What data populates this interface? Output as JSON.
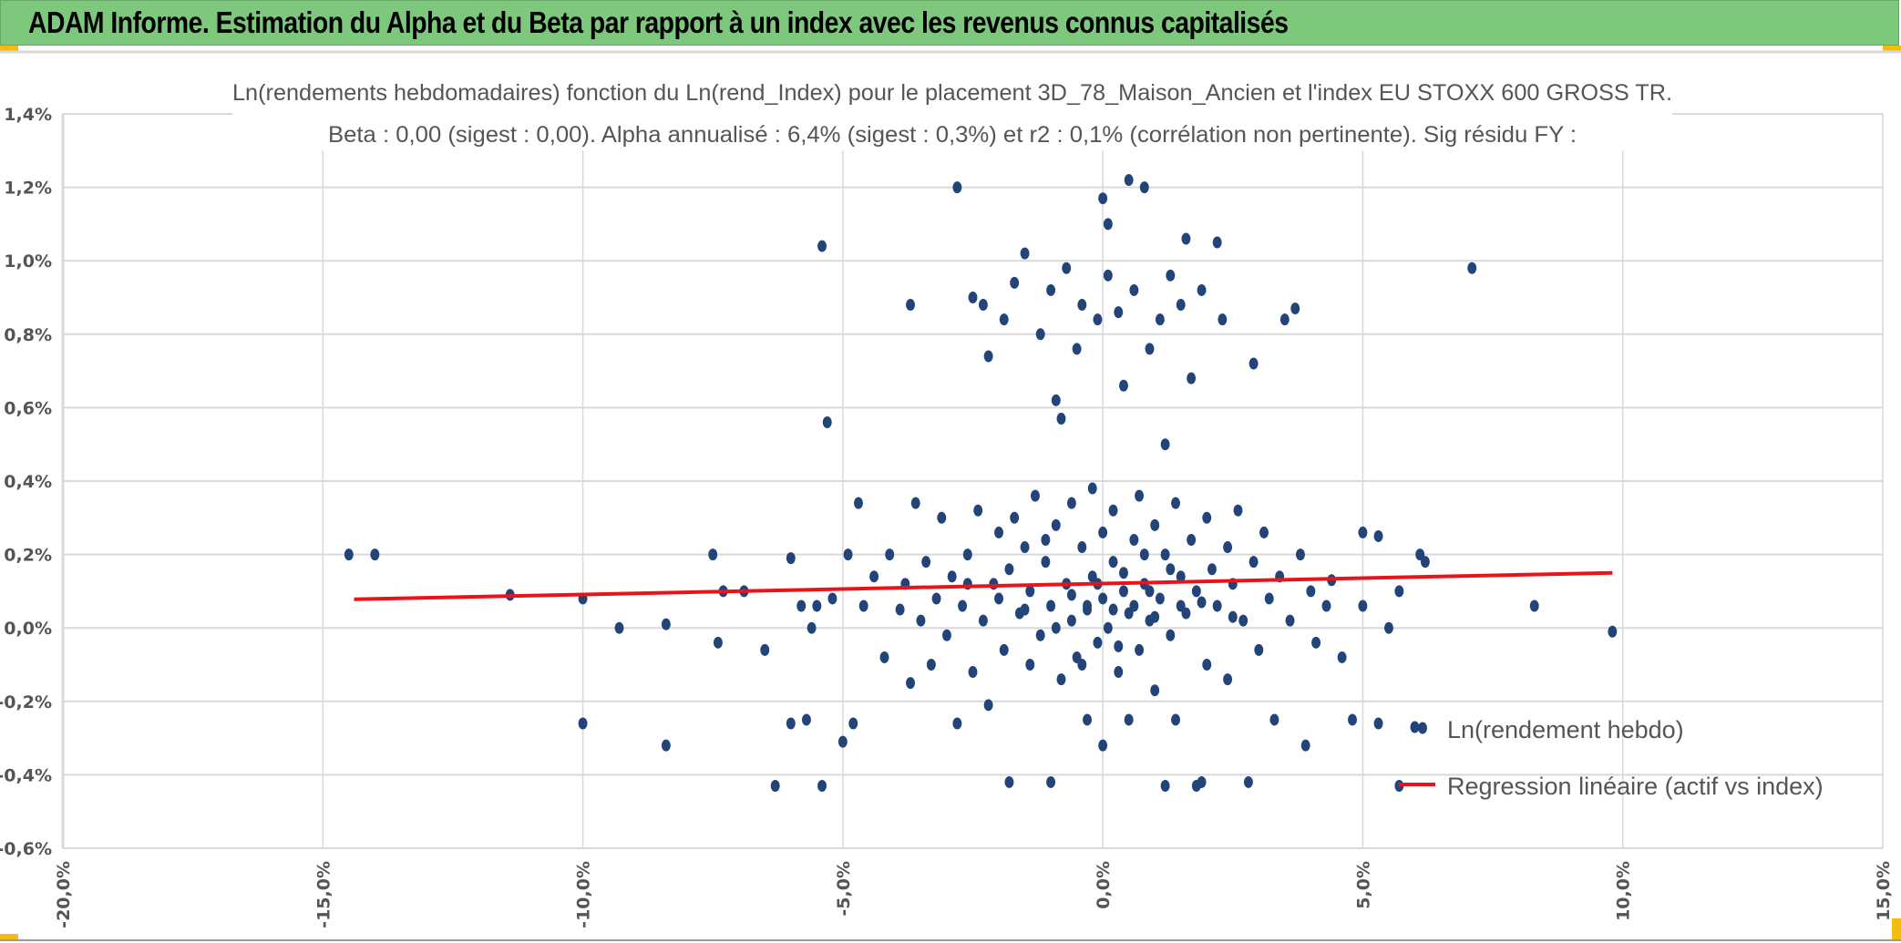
{
  "header": {
    "title": "ADAM Informe. Estimation du Alpha et du Beta par rapport à un index avec les revenus connus capitalisés"
  },
  "colors": {
    "header_bg": "#7dc87d",
    "points": "#234479",
    "regression": "#e8141b",
    "grid": "#d9d9d9",
    "accent": "#f4bc12"
  },
  "chart_data": {
    "type": "scatter",
    "title": "Ln(rendements hebdomadaires) fonction du Ln(rend_Index) pour le placement 3D_78_Maison_Ancien et l'index EU STOXX 600 GROSS TR.",
    "subtitle": "Beta : 0,00 (sigest : 0,00). Alpha annualisé : 6,4% (sigest : 0,3%) et r2 : 0,1% (corrélation non pertinente). Sig résidu FY :",
    "xlim": [
      -20,
      15
    ],
    "ylim": [
      -0.6,
      1.4
    ],
    "x_unit": "%",
    "y_unit": "%",
    "x_ticks": [
      "-20,0%",
      "-15,0%",
      "-10,0%",
      "-5,0%",
      "0,0%",
      "5,0%",
      "10,0%",
      "15,0%"
    ],
    "x_tick_values": [
      -20,
      -15,
      -10,
      -5,
      0,
      5,
      10,
      15
    ],
    "y_ticks": [
      "1,4%",
      "1,2%",
      "1,0%",
      "0,8%",
      "0,6%",
      "0,4%",
      "0,2%",
      "0,0%",
      "-0,2%",
      "-0,4%",
      "-0,6%"
    ],
    "y_tick_values": [
      1.4,
      1.2,
      1.0,
      0.8,
      0.6,
      0.4,
      0.2,
      0.0,
      -0.2,
      -0.4,
      -0.6
    ],
    "grid": "horizontal and vertical",
    "legend_placement": "bottom-right",
    "series": [
      {
        "name": "Ln(rendement hebdo)",
        "kind": "scatter",
        "points": [
          [
            -14.5,
            0.2
          ],
          [
            -14.0,
            0.2
          ],
          [
            -11.4,
            0.09
          ],
          [
            -10.0,
            0.08
          ],
          [
            -10.0,
            -0.26
          ],
          [
            -9.3,
            0.0
          ],
          [
            -8.4,
            0.01
          ],
          [
            -8.4,
            -0.32
          ],
          [
            -7.5,
            0.2
          ],
          [
            -7.4,
            -0.04
          ],
          [
            -7.3,
            0.1
          ],
          [
            -6.9,
            0.1
          ],
          [
            -6.5,
            -0.06
          ],
          [
            -6.3,
            -0.43
          ],
          [
            -6.0,
            0.19
          ],
          [
            -6.0,
            -0.26
          ],
          [
            -5.8,
            0.06
          ],
          [
            -5.7,
            -0.25
          ],
          [
            -5.6,
            0.0
          ],
          [
            -5.5,
            0.06
          ],
          [
            -5.4,
            1.04
          ],
          [
            -5.3,
            0.56
          ],
          [
            -5.4,
            -0.43
          ],
          [
            -5.2,
            0.08
          ],
          [
            -5.0,
            -0.31
          ],
          [
            -4.9,
            0.2
          ],
          [
            -4.8,
            -0.26
          ],
          [
            -4.7,
            0.34
          ],
          [
            -4.6,
            0.06
          ],
          [
            -4.4,
            0.14
          ],
          [
            -4.2,
            -0.08
          ],
          [
            -4.1,
            0.2
          ],
          [
            -3.9,
            0.05
          ],
          [
            -3.8,
            0.12
          ],
          [
            -3.7,
            0.88
          ],
          [
            -3.7,
            -0.15
          ],
          [
            -3.6,
            0.34
          ],
          [
            -3.5,
            0.02
          ],
          [
            -3.4,
            0.18
          ],
          [
            -3.3,
            -0.1
          ],
          [
            -3.2,
            0.08
          ],
          [
            -3.1,
            0.3
          ],
          [
            -3.0,
            -0.02
          ],
          [
            -2.9,
            0.14
          ],
          [
            -2.8,
            1.2
          ],
          [
            -2.8,
            -0.26
          ],
          [
            -2.7,
            0.06
          ],
          [
            -2.6,
            0.2
          ],
          [
            -2.5,
            0.9
          ],
          [
            -2.5,
            -0.12
          ],
          [
            -2.4,
            0.32
          ],
          [
            -2.3,
            0.88
          ],
          [
            -2.3,
            0.02
          ],
          [
            -2.2,
            0.74
          ],
          [
            -2.2,
            -0.21
          ],
          [
            -2.1,
            0.12
          ],
          [
            -2.0,
            0.26
          ],
          [
            -1.9,
            0.84
          ],
          [
            -1.9,
            -0.06
          ],
          [
            -1.8,
            -0.42
          ],
          [
            -1.8,
            0.16
          ],
          [
            -1.7,
            0.3
          ],
          [
            -1.7,
            0.94
          ],
          [
            -1.6,
            0.04
          ],
          [
            -1.5,
            1.02
          ],
          [
            -1.5,
            0.22
          ],
          [
            -1.4,
            -0.1
          ],
          [
            -1.4,
            0.1
          ],
          [
            -1.3,
            0.36
          ],
          [
            -1.2,
            0.8
          ],
          [
            -1.2,
            -0.02
          ],
          [
            -1.1,
            0.18
          ],
          [
            -1.0,
            -0.42
          ],
          [
            -1.0,
            0.92
          ],
          [
            -1.0,
            0.06
          ],
          [
            -0.9,
            0.62
          ],
          [
            -0.9,
            0.28
          ],
          [
            -0.8,
            -0.14
          ],
          [
            -0.8,
            0.57
          ],
          [
            -0.7,
            0.12
          ],
          [
            -0.7,
            0.98
          ],
          [
            -0.6,
            0.34
          ],
          [
            -0.6,
            0.02
          ],
          [
            -0.5,
            0.76
          ],
          [
            -0.5,
            -0.08
          ],
          [
            -0.4,
            0.22
          ],
          [
            -0.4,
            0.88
          ],
          [
            -0.3,
            0.06
          ],
          [
            -0.3,
            -0.25
          ],
          [
            -0.2,
            0.38
          ],
          [
            -0.2,
            0.14
          ],
          [
            -0.1,
            0.84
          ],
          [
            -0.1,
            -0.04
          ],
          [
            0.0,
            1.17
          ],
          [
            0.0,
            0.08
          ],
          [
            0.0,
            -0.32
          ],
          [
            0.0,
            0.26
          ],
          [
            0.1,
            1.1
          ],
          [
            0.1,
            0.96
          ],
          [
            0.1,
            0.0
          ],
          [
            0.2,
            0.18
          ],
          [
            0.2,
            0.32
          ],
          [
            0.3,
            -0.12
          ],
          [
            0.3,
            0.86
          ],
          [
            0.4,
            0.1
          ],
          [
            0.4,
            0.66
          ],
          [
            0.5,
            1.22
          ],
          [
            0.5,
            0.04
          ],
          [
            0.5,
            -0.25
          ],
          [
            0.6,
            0.24
          ],
          [
            0.6,
            0.92
          ],
          [
            0.7,
            0.36
          ],
          [
            0.7,
            -0.06
          ],
          [
            0.8,
            0.12
          ],
          [
            0.8,
            1.2
          ],
          [
            0.9,
            0.76
          ],
          [
            0.9,
            0.02
          ],
          [
            1.0,
            0.28
          ],
          [
            1.0,
            -0.17
          ],
          [
            1.1,
            0.84
          ],
          [
            1.1,
            0.08
          ],
          [
            1.2,
            0.5
          ],
          [
            1.2,
            -0.43
          ],
          [
            1.2,
            0.2
          ],
          [
            1.3,
            0.96
          ],
          [
            1.3,
            -0.02
          ],
          [
            1.4,
            0.34
          ],
          [
            1.4,
            -0.25
          ],
          [
            1.5,
            0.14
          ],
          [
            1.5,
            0.88
          ],
          [
            1.6,
            1.06
          ],
          [
            1.6,
            0.04
          ],
          [
            1.7,
            0.68
          ],
          [
            1.7,
            0.24
          ],
          [
            1.8,
            -0.43
          ],
          [
            1.8,
            0.1
          ],
          [
            1.9,
            -0.42
          ],
          [
            1.9,
            0.92
          ],
          [
            2.0,
            0.3
          ],
          [
            2.0,
            -0.1
          ],
          [
            2.1,
            0.16
          ],
          [
            2.2,
            1.05
          ],
          [
            2.2,
            0.06
          ],
          [
            2.3,
            0.84
          ],
          [
            2.4,
            0.22
          ],
          [
            2.4,
            -0.14
          ],
          [
            2.5,
            0.12
          ],
          [
            2.6,
            0.32
          ],
          [
            2.7,
            0.02
          ],
          [
            2.8,
            -0.42
          ],
          [
            2.9,
            0.72
          ],
          [
            2.9,
            0.18
          ],
          [
            3.0,
            -0.06
          ],
          [
            3.1,
            0.26
          ],
          [
            3.2,
            0.08
          ],
          [
            3.3,
            -0.25
          ],
          [
            3.4,
            0.14
          ],
          [
            3.5,
            0.84
          ],
          [
            3.6,
            0.02
          ],
          [
            3.7,
            0.87
          ],
          [
            3.8,
            0.2
          ],
          [
            3.9,
            -0.32
          ],
          [
            4.0,
            0.1
          ],
          [
            4.1,
            -0.04
          ],
          [
            4.3,
            0.06
          ],
          [
            4.4,
            0.13
          ],
          [
            4.6,
            -0.08
          ],
          [
            4.8,
            -0.25
          ],
          [
            5.0,
            0.26
          ],
          [
            5.0,
            0.06
          ],
          [
            5.3,
            0.25
          ],
          [
            5.3,
            -0.26
          ],
          [
            5.5,
            0.0
          ],
          [
            5.7,
            0.1
          ],
          [
            5.7,
            -0.43
          ],
          [
            6.0,
            -0.27
          ],
          [
            6.1,
            0.2
          ],
          [
            6.2,
            0.18
          ],
          [
            7.1,
            0.98
          ],
          [
            8.3,
            0.06
          ],
          [
            9.8,
            -0.01
          ],
          [
            -0.3,
            0.05
          ],
          [
            0.2,
            0.05
          ],
          [
            0.6,
            0.06
          ],
          [
            -0.6,
            0.09
          ],
          [
            1.0,
            0.03
          ],
          [
            0.4,
            0.15
          ],
          [
            -0.9,
            0.0
          ],
          [
            1.5,
            0.06
          ],
          [
            -1.5,
            0.05
          ],
          [
            0.8,
            0.2
          ],
          [
            -0.1,
            0.12
          ],
          [
            0.3,
            -0.05
          ],
          [
            1.9,
            0.07
          ],
          [
            -2.0,
            0.08
          ],
          [
            2.5,
            0.03
          ],
          [
            -2.6,
            0.12
          ],
          [
            0.9,
            0.1
          ],
          [
            -0.4,
            -0.1
          ],
          [
            1.3,
            0.16
          ],
          [
            -1.1,
            0.24
          ]
        ]
      },
      {
        "name": "Regression linéaire (actif vs index)",
        "kind": "line",
        "points": [
          [
            -14.4,
            0.078
          ],
          [
            9.8,
            0.15
          ]
        ]
      }
    ]
  }
}
